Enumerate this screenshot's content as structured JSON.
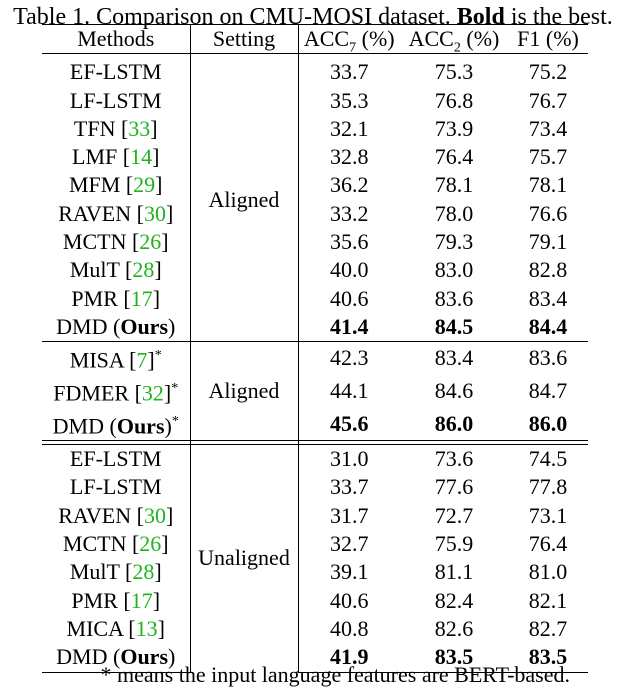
{
  "caption": {
    "prefix": "Table 1. Comparison on CMU-MOSI dataset. ",
    "bold": "Bold",
    "suffix": " is the best."
  },
  "header": {
    "methods": "Methods",
    "setting": "Setting",
    "acc7_base": "ACC",
    "acc7_sub": "7",
    "acc7_unit": " (%)",
    "acc2_base": "ACC",
    "acc2_sub": "2",
    "acc2_unit": " (%)",
    "f1": "F1 (%)"
  },
  "groups": [
    {
      "setting": "Aligned",
      "rows": [
        {
          "name": "EF-LSTM",
          "cite": "",
          "acc7": "33.7",
          "acc2": "75.3",
          "f1": "75.2"
        },
        {
          "name": "LF-LSTM",
          "cite": "",
          "acc7": "35.3",
          "acc2": "76.8",
          "f1": "76.7"
        },
        {
          "name": "TFN",
          "cite": "33",
          "acc7": "32.1",
          "acc2": "73.9",
          "f1": "73.4"
        },
        {
          "name": "LMF",
          "cite": "14",
          "acc7": "32.8",
          "acc2": "76.4",
          "f1": "75.7"
        },
        {
          "name": "MFM",
          "cite": "29",
          "acc7": "36.2",
          "acc2": "78.1",
          "f1": "78.1"
        },
        {
          "name": "RAVEN",
          "cite": "30",
          "acc7": "33.2",
          "acc2": "78.0",
          "f1": "76.6"
        },
        {
          "name": "MCTN",
          "cite": "26",
          "acc7": "35.6",
          "acc2": "79.3",
          "f1": "79.1"
        },
        {
          "name": "MulT",
          "cite": "28",
          "acc7": "40.0",
          "acc2": "83.0",
          "f1": "82.8"
        },
        {
          "name": "PMR",
          "cite": "17",
          "acc7": "40.6",
          "acc2": "83.6",
          "f1": "83.4"
        },
        {
          "name": "DMD",
          "ours": "Ours",
          "acc7": "41.4",
          "acc2": "84.5",
          "f1": "84.4",
          "bold": true
        }
      ]
    },
    {
      "setting": "Aligned",
      "rows": [
        {
          "name": "MISA",
          "cite": "7",
          "star": "*",
          "acc7": "42.3",
          "acc2": "83.4",
          "f1": "83.6"
        },
        {
          "name": "FDMER",
          "cite": "32",
          "star": "*",
          "acc7": "44.1",
          "acc2": "84.6",
          "f1": "84.7"
        },
        {
          "name": "DMD",
          "ours": "Ours",
          "star": "*",
          "acc7": "45.6",
          "acc2": "86.0",
          "f1": "86.0",
          "bold": true
        }
      ]
    },
    {
      "setting": "Unaligned",
      "rows": [
        {
          "name": "EF-LSTM",
          "cite": "",
          "acc7": "31.0",
          "acc2": "73.6",
          "f1": "74.5"
        },
        {
          "name": "LF-LSTM",
          "cite": "",
          "acc7": "33.7",
          "acc2": "77.6",
          "f1": "77.8"
        },
        {
          "name": "RAVEN",
          "cite": "30",
          "acc7": "31.7",
          "acc2": "72.7",
          "f1": "73.1"
        },
        {
          "name": "MCTN",
          "cite": "26",
          "acc7": "32.7",
          "acc2": "75.9",
          "f1": "76.4"
        },
        {
          "name": "MulT",
          "cite": "28",
          "acc7": "39.1",
          "acc2": "81.1",
          "f1": "81.0"
        },
        {
          "name": "PMR",
          "cite": "17",
          "acc7": "40.6",
          "acc2": "82.4",
          "f1": "82.1"
        },
        {
          "name": "MICA",
          "cite": "13",
          "acc7": "40.8",
          "acc2": "82.6",
          "f1": "82.7"
        },
        {
          "name": "DMD",
          "ours": "Ours",
          "acc7": "41.9",
          "acc2": "83.5",
          "f1": "83.5",
          "bold": true
        }
      ]
    }
  ],
  "footnote": "* means the input language features are BERT-based."
}
